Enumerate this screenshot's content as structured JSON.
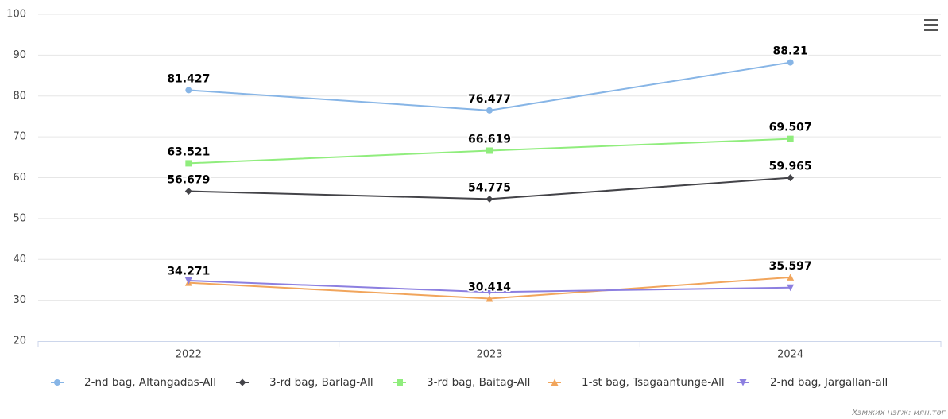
{
  "chart_data": {
    "type": "line",
    "categories": [
      "2022",
      "2023",
      "2024"
    ],
    "ylim": [
      20,
      100
    ],
    "yticks": [
      20,
      30,
      40,
      50,
      60,
      70,
      80,
      90,
      100
    ],
    "grid": true,
    "legend": "bottom",
    "unit_note": "Хэмжих нэгж: мян.төг",
    "series": [
      {
        "name": "2-nd bag, Altangadas-All",
        "color": "#87b5e6",
        "marker": "circle",
        "data_labels": true,
        "values": [
          81.427,
          76.477,
          88.21
        ]
      },
      {
        "name": "3-rd bag, Barlag-All",
        "color": "#434348",
        "marker": "diamond",
        "data_labels": true,
        "values": [
          56.679,
          54.775,
          59.965
        ]
      },
      {
        "name": "3-rd bag, Baitag-All",
        "color": "#90ed7d",
        "marker": "square",
        "data_labels": true,
        "values": [
          63.521,
          66.619,
          69.507
        ]
      },
      {
        "name": "1-st bag, Tsagaantunge-All",
        "color": "#f1a55c",
        "marker": "triangle",
        "data_labels": true,
        "values": [
          34.271,
          30.414,
          35.597
        ]
      },
      {
        "name": "2-nd bag, Jargallan-all",
        "color": "#8c7fe0",
        "marker": "triangle-down",
        "data_labels": false,
        "values": [
          34.8,
          32.0,
          33.1
        ]
      }
    ]
  }
}
